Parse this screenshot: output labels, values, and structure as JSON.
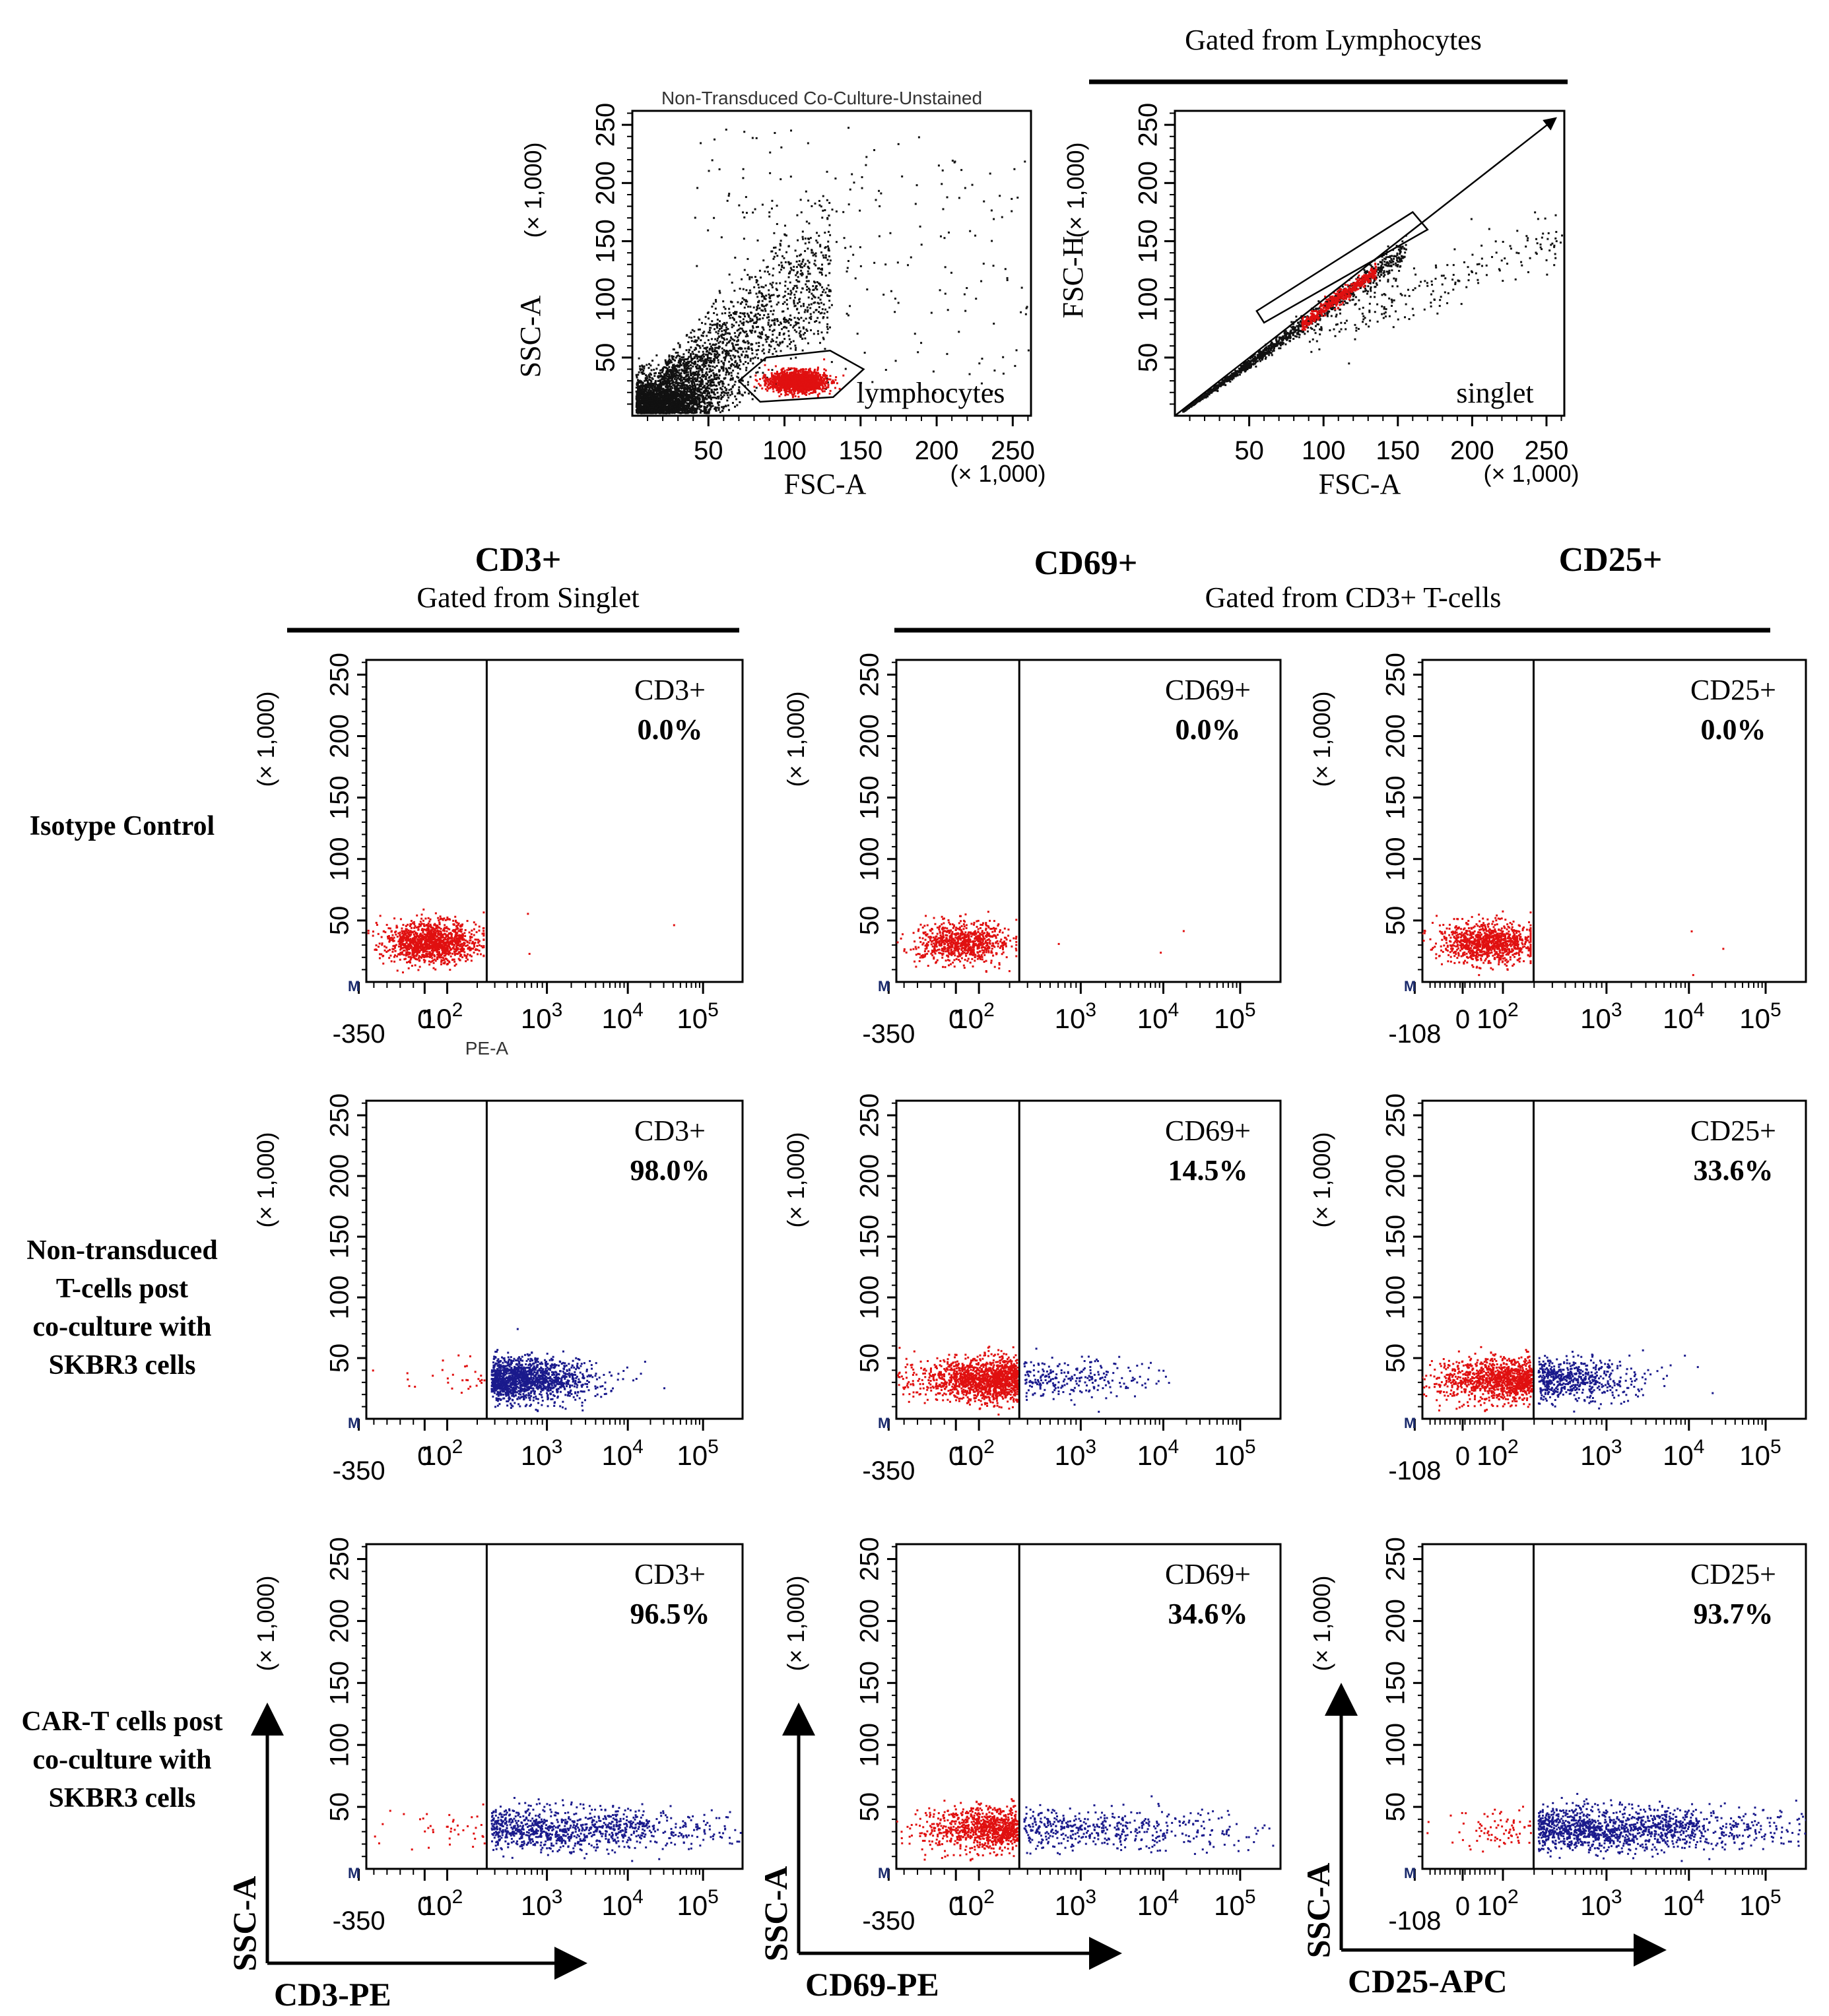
{
  "colors": {
    "gated": "#e01010",
    "positive": "#1a1a8c",
    "ungated": "#111111",
    "axis": "#000000"
  },
  "gating_header_top": "Gated from Lymphocytes",
  "gating_header_cd3": "Gated from Singlet",
  "gating_header_cd3_cells": "Gated from CD3+ T-cells",
  "column_titles": {
    "cd3": "CD3+",
    "cd69": "CD69+",
    "cd25": "CD25+"
  },
  "row_labels": [
    {
      "lines": [
        "Isotype Control"
      ]
    },
    {
      "lines": [
        "Non-transduced",
        "T-cells post",
        "co-culture with",
        "SKBR3 cells"
      ]
    },
    {
      "lines": [
        "CAR-T cells post",
        "co-culture with",
        "SKBR3 cells"
      ]
    }
  ],
  "big_axis_labels": {
    "cd3": {
      "x": "CD3-PE",
      "y": "SSC-A"
    },
    "cd69": {
      "x": "CD69-PE",
      "y": "SSC-A"
    },
    "cd25": {
      "x": "CD25-APC",
      "y": "SSC-A"
    }
  },
  "stray_texts": {
    "top_left_title": "Non-Transduced Co-Culture-Unstained",
    "pe_a": "PE-A",
    "marker_m": "M"
  },
  "chart_data": [
    {
      "id": "lymphocytes",
      "type": "scatter",
      "xlabel": "FSC-A",
      "ylabel": "SSC-A",
      "x_multiplier": "(× 1,000)",
      "y_multiplier": "(× 1,000)",
      "xlim": [
        0,
        262
      ],
      "ylim": [
        0,
        262
      ],
      "xticks": [
        50,
        100,
        150,
        200,
        250
      ],
      "yticks": [
        50,
        100,
        150,
        200,
        250
      ],
      "gate_label": "lymphocytes",
      "gate_polygon": [
        [
          70,
          30
        ],
        [
          88,
          50
        ],
        [
          130,
          56
        ],
        [
          152,
          40
        ],
        [
          132,
          16
        ],
        [
          84,
          12
        ]
      ],
      "populations": [
        {
          "name": "gated lymphocytes",
          "color": "red",
          "center": [
            108,
            30
          ],
          "spread": [
            13,
            6
          ]
        },
        {
          "name": "debris and other events",
          "color": "black",
          "center": [
            30,
            35
          ],
          "spread": [
            40,
            40
          ]
        }
      ]
    },
    {
      "id": "singlet",
      "type": "scatter",
      "xlabel": "FSC-A",
      "ylabel": "FSC-H",
      "x_multiplier": "(× 1,000)",
      "y_multiplier": "(× 1,000)",
      "xlim": [
        0,
        262
      ],
      "ylim": [
        0,
        262
      ],
      "xticks": [
        50,
        100,
        150,
        200,
        250
      ],
      "yticks": [
        50,
        100,
        150,
        200,
        250
      ],
      "gate_label": "singlet",
      "arrow_from": [
        0,
        0
      ],
      "arrow_to": [
        258,
        258
      ],
      "gate_polygon": [
        [
          60,
          80
        ],
        [
          170,
          160
        ],
        [
          160,
          175
        ],
        [
          55,
          90
        ]
      ],
      "populations": [
        {
          "name": "singlets",
          "color": "red",
          "center": [
            110,
            100
          ],
          "spread": [
            25,
            20
          ]
        },
        {
          "name": "other events",
          "color": "black",
          "center": [
            60,
            55
          ],
          "spread": [
            50,
            45
          ]
        }
      ]
    },
    {
      "id": "cd3-isotype",
      "type": "scatter",
      "row": 0,
      "col": 0,
      "marker": "CD3+",
      "percent": "0.0%",
      "x_ticks": [
        "-350",
        "0",
        "10^2",
        "10^3",
        "10^4",
        "10^5"
      ],
      "y_ticks": [
        50,
        100,
        150,
        200,
        250
      ],
      "y_multiplier": "(× 1,000)",
      "ylim": [
        0,
        262
      ],
      "gate_at": "between 10^2 and 10^3",
      "populations": [
        {
          "color": "red",
          "region": "negative",
          "count": 1300
        }
      ]
    },
    {
      "id": "cd69-isotype",
      "type": "scatter",
      "row": 0,
      "col": 1,
      "marker": "CD69+",
      "percent": "0.0%",
      "x_ticks": [
        "-350",
        "0",
        "10^2",
        "10^3",
        "10^4",
        "10^5"
      ],
      "y_ticks": [
        50,
        100,
        150,
        200,
        250
      ],
      "y_multiplier": "(× 1,000)",
      "ylim": [
        0,
        262
      ],
      "gate_at": "between 10^2 and 10^3",
      "populations": [
        {
          "color": "red",
          "region": "negative",
          "count": 800
        }
      ]
    },
    {
      "id": "cd25-isotype",
      "type": "scatter",
      "row": 0,
      "col": 2,
      "marker": "CD25+",
      "percent": "0.0%",
      "x_ticks": [
        "-108",
        "0",
        "10^2",
        "10^3",
        "10^4",
        "10^5"
      ],
      "y_ticks": [
        50,
        100,
        150,
        200,
        250
      ],
      "y_multiplier": "(× 1,000)",
      "ylim": [
        0,
        262
      ],
      "gate_at": "between 10^2 and 10^3",
      "populations": [
        {
          "color": "red",
          "region": "negative",
          "count": 1000
        }
      ]
    },
    {
      "id": "cd3-nontransduced",
      "type": "scatter",
      "row": 1,
      "col": 0,
      "marker": "CD3+",
      "percent": "98.0%",
      "x_ticks": [
        "-350",
        "0",
        "10^2",
        "10^3",
        "10^4",
        "10^5"
      ],
      "y_ticks": [
        50,
        100,
        150,
        200,
        250
      ],
      "y_multiplier": "(× 1,000)",
      "ylim": [
        0,
        262
      ],
      "gate_at": "between 10^2 and 10^3",
      "populations": [
        {
          "color": "red",
          "region": "negative",
          "count": 30
        },
        {
          "color": "blue",
          "region": "positive",
          "count": 1400
        }
      ]
    },
    {
      "id": "cd69-nontransduced",
      "type": "scatter",
      "row": 1,
      "col": 1,
      "marker": "CD69+",
      "percent": "14.5%",
      "x_ticks": [
        "-350",
        "0",
        "10^2",
        "10^3",
        "10^4",
        "10^5"
      ],
      "y_ticks": [
        50,
        100,
        150,
        200,
        250
      ],
      "y_multiplier": "(× 1,000)",
      "ylim": [
        0,
        262
      ],
      "gate_at": "between 10^2 and 10^3",
      "populations": [
        {
          "color": "red",
          "region": "negative",
          "count": 1400
        },
        {
          "color": "blue",
          "region": "positive",
          "count": 240
        }
      ]
    },
    {
      "id": "cd25-nontransduced",
      "type": "scatter",
      "row": 1,
      "col": 2,
      "marker": "CD25+",
      "percent": "33.6%",
      "x_ticks": [
        "-108",
        "0",
        "10^2",
        "10^3",
        "10^4",
        "10^5"
      ],
      "y_ticks": [
        50,
        100,
        150,
        200,
        250
      ],
      "y_multiplier": "(× 1,000)",
      "ylim": [
        0,
        262
      ],
      "gate_at": "between 10^2 and 10^3",
      "populations": [
        {
          "color": "red",
          "region": "negative",
          "count": 1100
        },
        {
          "color": "blue",
          "region": "positive",
          "count": 560
        }
      ]
    },
    {
      "id": "cd3-cart",
      "type": "scatter",
      "row": 2,
      "col": 0,
      "marker": "CD3+",
      "percent": "96.5%",
      "x_ticks": [
        "-350",
        "0",
        "10^2",
        "10^3",
        "10^4",
        "10^5"
      ],
      "y_ticks": [
        50,
        100,
        150,
        200,
        250
      ],
      "y_multiplier": "(× 1,000)",
      "ylim": [
        0,
        262
      ],
      "gate_at": "between 10^2 and 10^3",
      "populations": [
        {
          "color": "red",
          "region": "negative",
          "count": 40
        },
        {
          "color": "blue",
          "region": "positive",
          "count": 1000
        }
      ]
    },
    {
      "id": "cd69-cart",
      "type": "scatter",
      "row": 2,
      "col": 1,
      "marker": "CD69+",
      "percent": "34.6%",
      "x_ticks": [
        "-350",
        "0",
        "10^2",
        "10^3",
        "10^4",
        "10^5"
      ],
      "y_ticks": [
        50,
        100,
        150,
        200,
        250
      ],
      "y_multiplier": "(× 1,000)",
      "ylim": [
        0,
        262
      ],
      "gate_at": "between 10^2 and 10^3",
      "populations": [
        {
          "color": "red",
          "region": "negative",
          "count": 900
        },
        {
          "color": "blue",
          "region": "positive",
          "count": 480
        }
      ]
    },
    {
      "id": "cd25-cart",
      "type": "scatter",
      "row": 2,
      "col": 2,
      "marker": "CD25+",
      "percent": "93.7%",
      "x_ticks": [
        "-108",
        "0",
        "10^2",
        "10^3",
        "10^4",
        "10^5"
      ],
      "y_ticks": [
        50,
        100,
        150,
        200,
        250
      ],
      "y_multiplier": "(× 1,000)",
      "ylim": [
        0,
        262
      ],
      "gate_at": "between 10^2 and 10^3",
      "populations": [
        {
          "color": "red",
          "region": "negative",
          "count": 80
        },
        {
          "color": "blue",
          "region": "positive",
          "count": 1400
        }
      ]
    }
  ]
}
